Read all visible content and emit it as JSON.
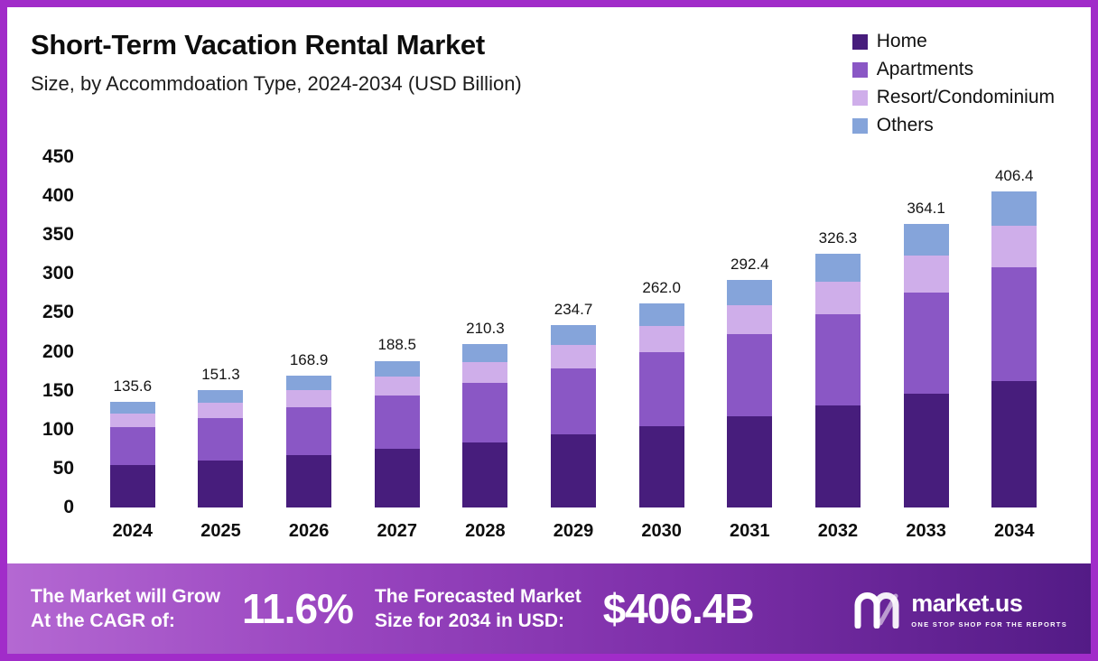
{
  "header": {
    "title": "Short-Term Vacation Rental Market",
    "subtitle": "Size, by Accommdoation Type, 2024-2034 (USD Billion)"
  },
  "legend": [
    {
      "label": "Home",
      "color": "#471d7c"
    },
    {
      "label": "Apartments",
      "color": "#8a57c5"
    },
    {
      "label": "Resort/Condominium",
      "color": "#cfaeea"
    },
    {
      "label": "Others",
      "color": "#85a4da"
    }
  ],
  "chart_data": {
    "type": "bar",
    "stacked": true,
    "title": "Short-Term Vacation Rental Market Size, by Accommodation Type, 2024-2034 (USD Billion)",
    "categories": [
      "2024",
      "2025",
      "2026",
      "2027",
      "2028",
      "2029",
      "2030",
      "2031",
      "2032",
      "2033",
      "2034"
    ],
    "series": [
      {
        "name": "Home",
        "color": "#471d7c",
        "values": [
          54.2,
          60.5,
          67.6,
          75.4,
          84.1,
          93.9,
          104.8,
          117.0,
          130.5,
          145.6,
          162.6
        ]
      },
      {
        "name": "Apartments",
        "color": "#8a57c5",
        "values": [
          48.8,
          54.5,
          60.8,
          67.9,
          75.7,
          84.5,
          94.3,
          105.2,
          117.4,
          131.0,
          146.3
        ]
      },
      {
        "name": "Resort/Condominium",
        "color": "#cfaeea",
        "values": [
          17.6,
          19.7,
          22.0,
          24.5,
          27.3,
          30.5,
          34.1,
          38.0,
          42.4,
          47.3,
          52.8
        ]
      },
      {
        "name": "Others",
        "color": "#85a4da",
        "values": [
          15.0,
          16.6,
          18.5,
          20.7,
          23.2,
          25.8,
          28.8,
          32.2,
          36.0,
          40.2,
          44.7
        ]
      }
    ],
    "totals": [
      135.6,
      151.3,
      168.9,
      188.5,
      210.3,
      234.7,
      262.0,
      292.4,
      326.3,
      364.1,
      406.4
    ],
    "xlabel": "",
    "ylabel": "",
    "ylim": [
      0,
      450
    ],
    "yticks": [
      450,
      400,
      350,
      300,
      250,
      200,
      150,
      100,
      50,
      0
    ],
    "grid": false,
    "legend_position": "top-right"
  },
  "footer": {
    "cagr_label_line1": "The Market will Grow",
    "cagr_label_line2": "At the CAGR of:",
    "cagr_value": "11.6%",
    "forecast_label_line1": "The Forecasted Market",
    "forecast_label_line2": "Size for 2034 in USD:",
    "forecast_value": "$406.4B",
    "brand": "market.us",
    "brand_tagline": "ONE STOP SHOP FOR THE REPORTS"
  },
  "colors": {
    "frame_border": "#a12cc9",
    "banner_gradient_start": "#b468d2",
    "banner_gradient_end": "#531b86",
    "text": "#0d0d0d"
  }
}
